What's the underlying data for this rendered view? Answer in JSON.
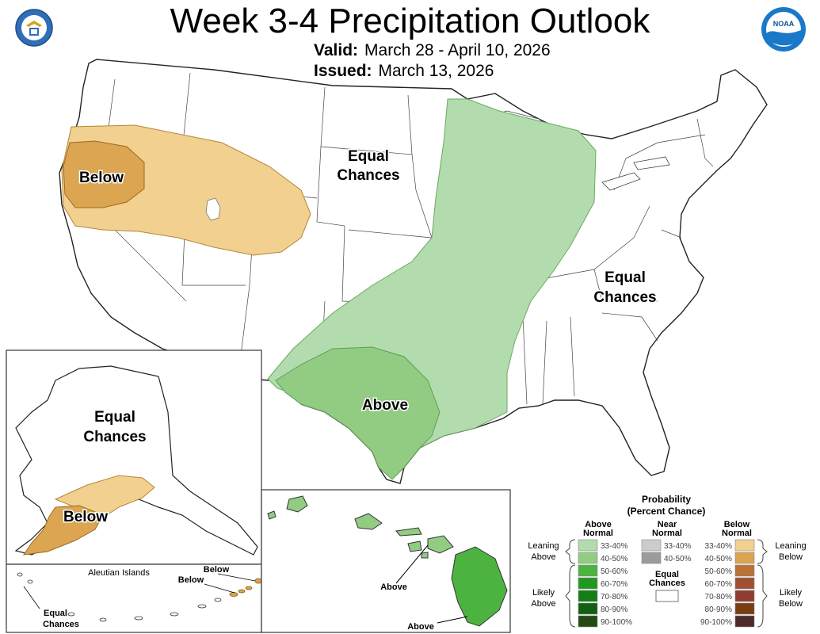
{
  "header": {
    "title": "Week 3-4 Precipitation Outlook",
    "valid_label": "Valid:",
    "valid_value": "March 28 - April 10, 2026",
    "issued_label": "Issued:",
    "issued_value": "March 13, 2026"
  },
  "logos": {
    "left_icon": "doc-seal-icon",
    "right_icon": "noaa-logo-icon",
    "right_text": "NOAA"
  },
  "map_labels": {
    "west_below": "Below",
    "central_equal_1": "Equal",
    "central_equal_2": "Chances",
    "east_equal_1": "Equal",
    "east_equal_2": "Chances",
    "texas_above": "Above",
    "alaska_equal_1": "Equal",
    "alaska_equal_2": "Chances",
    "alaska_below": "Below",
    "aleutian_title": "Aleutian Islands",
    "aleutian_below_1": "Below",
    "aleutian_below_2": "Below",
    "aleutian_equal_1": "Equal",
    "aleutian_equal_2": "Chances",
    "hawaii_above_1": "Above",
    "hawaii_above_2": "Above"
  },
  "legend": {
    "title_1": "Probability",
    "title_2": "(Percent Chance)",
    "above_head_1": "Above",
    "above_head_2": "Normal",
    "near_head_1": "Near",
    "near_head_2": "Normal",
    "below_head_1": "Below",
    "below_head_2": "Normal",
    "leaning_above_1": "Leaning",
    "leaning_above_2": "Above",
    "likely_above_1": "Likely",
    "likely_above_2": "Above",
    "leaning_below_1": "Leaning",
    "leaning_below_2": "Below",
    "likely_below_1": "Likely",
    "likely_below_2": "Below",
    "equal_1": "Equal",
    "equal_2": "Chances",
    "above_bins": [
      {
        "label": "33-40%",
        "color": "#b3dcae"
      },
      {
        "label": "40-50%",
        "color": "#92cc82"
      },
      {
        "label": "50-60%",
        "color": "#4db340"
      },
      {
        "label": "60-70%",
        "color": "#1f9a1e"
      },
      {
        "label": "70-80%",
        "color": "#137d16"
      },
      {
        "label": "80-90%",
        "color": "#136013"
      },
      {
        "label": "90-100%",
        "color": "#234a14"
      }
    ],
    "near_bins": [
      {
        "label": "33-40%",
        "color": "#cccccc"
      },
      {
        "label": "40-50%",
        "color": "#9b9b9b"
      }
    ],
    "below_bins": [
      {
        "label": "33-40%",
        "color": "#f2d08f"
      },
      {
        "label": "40-50%",
        "color": "#dba552"
      },
      {
        "label": "50-60%",
        "color": "#ba7237"
      },
      {
        "label": "60-70%",
        "color": "#a05031"
      },
      {
        "label": "70-80%",
        "color": "#8f3c31"
      },
      {
        "label": "80-90%",
        "color": "#7a3c12"
      },
      {
        "label": "90-100%",
        "color": "#4d2b2b"
      }
    ]
  }
}
